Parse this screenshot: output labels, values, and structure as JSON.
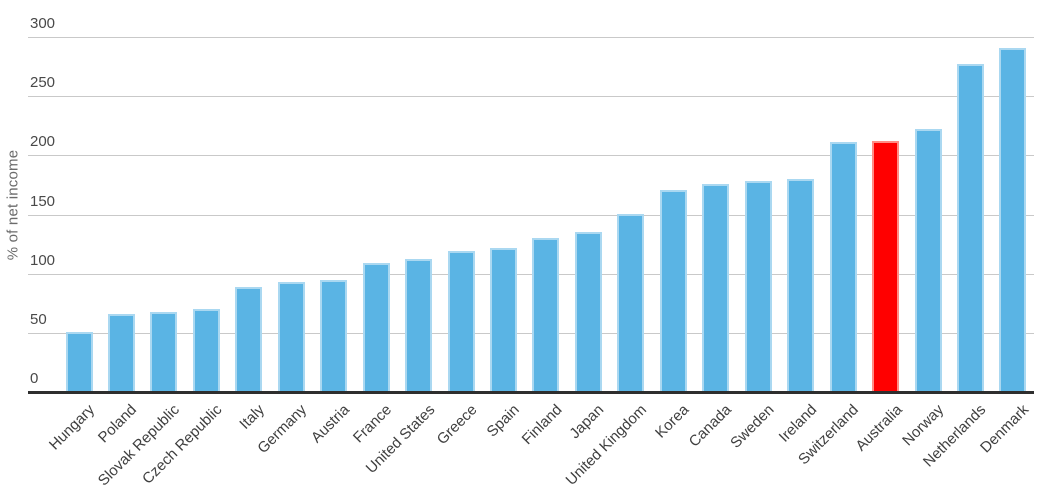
{
  "chart_data": {
    "type": "bar",
    "title": "",
    "ylabel": "% of net income",
    "xlabel": "",
    "ylim": [
      0,
      300
    ],
    "y_ticks": [
      0,
      50,
      100,
      150,
      200,
      250,
      300
    ],
    "grid": "horizontal-gridlines-on",
    "legend": "none",
    "x_tick_rotation_deg": 45,
    "highlight_category": "Australia",
    "categories": [
      "Hungary",
      "Poland",
      "Slovak Republic",
      "Czech Republic",
      "Italy",
      "Germany",
      "Austria",
      "France",
      "United States",
      "Greece",
      "Spain",
      "Finland",
      "Japan",
      "United Kingdom",
      "Korea",
      "Canada",
      "Sweden",
      "Ireland",
      "Switzerland",
      "Australia",
      "Norway",
      "Netherlands",
      "Denmark"
    ],
    "values": [
      51,
      66,
      68,
      70,
      89,
      93,
      95,
      109,
      112,
      119,
      122,
      130,
      135,
      150,
      171,
      176,
      178,
      180,
      211,
      212,
      222,
      277,
      291
    ],
    "colors": {
      "bar": "#5ab4e4",
      "bar_edge": "#aad8f1",
      "highlight": "#ff0000",
      "highlight_edge": "#ff8d85",
      "gridline": "#c9c9c9",
      "axis_line": "#2e2e2e",
      "tick_label": "#494949",
      "x_tick_label": "#3f3f3f",
      "axis_title": "#6b6b6b",
      "background": "#ffffff"
    }
  }
}
